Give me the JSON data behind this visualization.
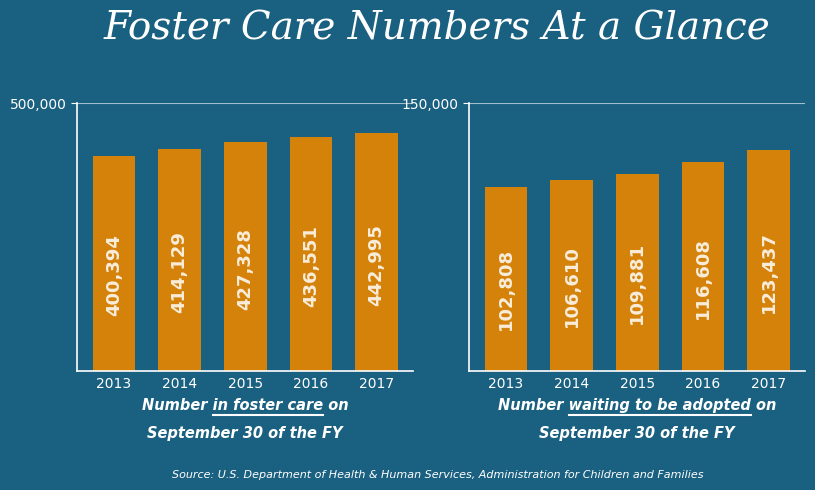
{
  "title": "Foster Care Numbers At a Glance",
  "background_color": "#1a6080",
  "bar_color": "#d4820a",
  "years": [
    "2013",
    "2014",
    "2015",
    "2016",
    "2017"
  ],
  "foster_care_values": [
    400394,
    414129,
    427328,
    436551,
    442995
  ],
  "adoption_values": [
    102808,
    106610,
    109881,
    116608,
    123437
  ],
  "foster_care_ylim_max": 500000,
  "adoption_ylim_max": 150000,
  "foster_care_ytick": 500000,
  "adoption_ytick": 150000,
  "label1_part1": "Number ",
  "label1_underline": "in foster care",
  "label1_part2": " on",
  "label1_line2": "September 30 of the FY",
  "label2_part1": "Number ",
  "label2_underline": "waiting to be adopted",
  "label2_part2": " on",
  "label2_line2": "September 30 of the FY",
  "source_text": "Source: U.S. Department of Health & Human Services, Administration for Children and Families",
  "title_fontsize": 28,
  "label_fontsize": 10.5,
  "value_fontsize": 13,
  "tick_fontsize": 10,
  "source_fontsize": 8
}
